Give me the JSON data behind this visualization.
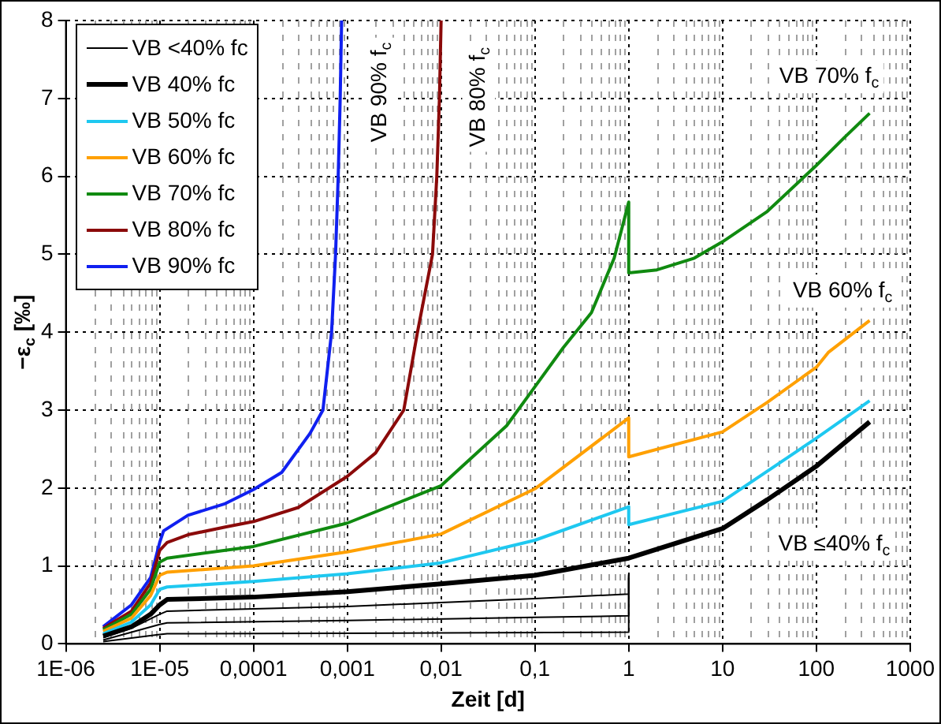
{
  "chart_data": {
    "type": "line",
    "xlabel": "Zeit [d]",
    "ylabel": "−ε$_{c}$ [‰]",
    "log": "x",
    "grid": true,
    "legend": "top left",
    "marker": "none",
    "line_style": "solid",
    "xlim": [
      1e-06,
      1000
    ],
    "xticks": [
      {
        "value": 1e-06,
        "label": "1E-06"
      },
      {
        "value": 1e-05,
        "label": "1E-05"
      },
      {
        "value": 0.0001,
        "label": "0,0001"
      },
      {
        "value": 0.001,
        "label": "0,001"
      },
      {
        "value": 0.01,
        "label": "0,01"
      },
      {
        "value": 0.1,
        "label": "0,1"
      },
      1,
      10,
      100,
      1000
    ],
    "ylim": [
      0,
      8
    ],
    "yticks": [
      0,
      1,
      2,
      3,
      4,
      5,
      6,
      7,
      8
    ],
    "series": [
      {
        "name": "VB <40% fc",
        "color": "#000000",
        "x": [
          2.5e-06,
          5e-06,
          1e-05,
          1.2e-05,
          0.0001,
          0.001,
          0.01,
          0.1,
          1,
          1
        ],
        "values": [
          0.08,
          0.2,
          0.38,
          0.42,
          0.45,
          0.48,
          0.53,
          0.58,
          0.64,
          0.9
        ]
      },
      {
        "name": "VB 40% fc",
        "color": "#000000",
        "x": [
          2.5e-06,
          5e-06,
          8e-06,
          1e-05,
          1.2e-05,
          0.0001,
          0.001,
          0.01,
          0.1,
          1,
          10,
          30,
          100,
          370
        ],
        "values": [
          0.1,
          0.22,
          0.38,
          0.5,
          0.57,
          0.6,
          0.67,
          0.77,
          0.88,
          1.1,
          1.48,
          1.85,
          2.28,
          2.85
        ]
      },
      {
        "name": "VB 50% fc",
        "color": "#1ec8f0",
        "x": [
          2.5e-06,
          5e-06,
          8e-06,
          1e-05,
          1.2e-05,
          0.0001,
          0.001,
          0.01,
          0.1,
          1,
          1,
          10,
          100,
          370
        ],
        "values": [
          0.13,
          0.28,
          0.5,
          0.7,
          0.73,
          0.8,
          0.9,
          1.04,
          1.33,
          1.76,
          1.53,
          1.83,
          2.64,
          3.12
        ]
      },
      {
        "name": "VB 60% fc",
        "color": "#ffa000",
        "x": [
          2.5e-06,
          5e-06,
          8e-06,
          1e-05,
          1.2e-05,
          0.0001,
          0.001,
          0.01,
          0.1,
          1,
          1,
          10,
          30,
          100,
          134,
          370
        ],
        "values": [
          0.16,
          0.33,
          0.62,
          0.88,
          0.92,
          1.0,
          1.18,
          1.41,
          1.99,
          2.9,
          2.4,
          2.72,
          3.1,
          3.55,
          3.74,
          4.15
        ]
      },
      {
        "name": "VB 70% fc",
        "color": "#108a10",
        "x": [
          2.5e-06,
          5e-06,
          8e-06,
          1e-05,
          1.2e-05,
          0.0001,
          0.001,
          0.01,
          0.05,
          0.1,
          0.2,
          0.4,
          0.7,
          1,
          1,
          2,
          5,
          10,
          30,
          100,
          200,
          370
        ],
        "values": [
          0.18,
          0.38,
          0.7,
          1.05,
          1.1,
          1.25,
          1.55,
          2.03,
          2.8,
          3.3,
          3.8,
          4.25,
          4.95,
          5.67,
          4.76,
          4.8,
          4.95,
          5.16,
          5.55,
          6.14,
          6.5,
          6.81
        ]
      },
      {
        "name": "VB 80% fc",
        "color": "#8b0a0a",
        "x": [
          2.5e-06,
          5e-06,
          8e-06,
          1e-05,
          1.2e-05,
          2e-05,
          5e-05,
          0.0001,
          0.0003,
          0.001,
          0.002,
          0.004,
          0.0056,
          0.0081,
          0.009,
          0.0096,
          0.01
        ],
        "values": [
          0.2,
          0.42,
          0.78,
          1.2,
          1.3,
          1.4,
          1.5,
          1.57,
          1.75,
          2.15,
          2.45,
          3.0,
          4.0,
          5.0,
          6.0,
          7.0,
          8.0
        ]
      },
      {
        "name": "VB 90% fc",
        "color": "#1020f0",
        "x": [
          2.5e-06,
          5e-06,
          8e-06,
          1e-05,
          1.1e-05,
          2e-05,
          5e-05,
          0.0001,
          0.0002,
          0.0004,
          0.00055,
          0.00068,
          0.00075,
          0.0008,
          0.00084,
          0.00087
        ],
        "values": [
          0.22,
          0.5,
          0.85,
          1.3,
          1.45,
          1.65,
          1.8,
          1.98,
          2.2,
          2.7,
          3.0,
          4.0,
          5.0,
          6.0,
          7.0,
          8.0
        ]
      },
      {
        "color": "#000000",
        "x": [
          2.5e-06,
          1e-05,
          1.2e-05,
          0.001,
          0.1,
          1,
          1
        ],
        "values": [
          0.05,
          0.25,
          0.27,
          0.3,
          0.34,
          0.36,
          0.88
        ]
      },
      {
        "color": "#000000",
        "x": [
          2.5e-06,
          1e-05,
          1.2e-05,
          0.01,
          1,
          1
        ],
        "values": [
          0.03,
          0.12,
          0.13,
          0.14,
          0.15,
          0.85
        ]
      }
    ],
    "annotations": [
      "VB 90% f$_{c}$",
      "VB 80% f$_{c}$",
      "VB 70% f$_{c}$",
      "VB 60% f$_{c}$",
      "VB ≤40% f$_{c}$"
    ]
  }
}
